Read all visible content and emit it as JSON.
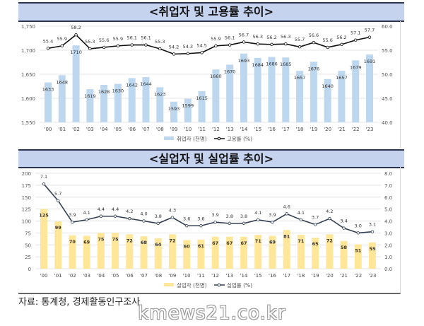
{
  "chart_data": [
    {
      "type": "bar",
      "title": "<취업자 및 고용률 추이>",
      "categories": [
        "'00",
        "'01",
        "'02",
        "'03",
        "'04",
        "'05",
        "'06",
        "'07",
        "'08",
        "'09",
        "'10",
        "'11",
        "'12",
        "'13",
        "'14",
        "'15",
        "'16",
        "'17",
        "'18",
        "'19",
        "'20",
        "'21",
        "'22",
        "'23"
      ],
      "series": [
        {
          "name": "취업자 (천명)",
          "type": "bar",
          "axis": "left",
          "color": "#bdd7ee",
          "values": [
            1633,
            1648,
            1710,
            1619,
            1628,
            1630,
            1642,
            1644,
            1623,
            1593,
            1599,
            1615,
            1660,
            1670,
            1693,
            1684,
            1686,
            1685,
            1657,
            1676,
            1640,
            1657,
            1679,
            1691
          ]
        },
        {
          "name": "고용률 (%)",
          "type": "line",
          "axis": "right",
          "color": "#111111",
          "values": [
            55.4,
            55.9,
            58.2,
            55.3,
            55.6,
            55.9,
            56.1,
            56.1,
            55.3,
            54.2,
            54.3,
            54.5,
            55.9,
            56.1,
            56.7,
            56.3,
            56.2,
            56.3,
            55.7,
            56.6,
            55.6,
            56.2,
            57.1,
            57.7
          ]
        }
      ],
      "ylim": [
        1550,
        1750
      ],
      "yticks": [
        "1,550",
        "1,600",
        "1,650",
        "1,700",
        "1,750"
      ],
      "y2lim": [
        40,
        60
      ],
      "y2ticks": [
        "40.0",
        "45.0",
        "50.0",
        "55.0",
        "60.0"
      ],
      "legend": "bottom"
    },
    {
      "type": "bar",
      "title": "<실업자 및 실업률 추이>",
      "categories": [
        "'00",
        "'01",
        "'02",
        "'03",
        "'04",
        "'05",
        "'06",
        "'07",
        "'08",
        "'09",
        "'10",
        "'11",
        "'12",
        "'13",
        "'14",
        "'15",
        "'16",
        "'17",
        "'18",
        "'19",
        "'20",
        "'21",
        "'22",
        "'23"
      ],
      "series": [
        {
          "name": "실업자 (천명)",
          "type": "bar",
          "axis": "left",
          "color": "#ffe699",
          "values": [
            125,
            99,
            70,
            69,
            75,
            75,
            72,
            68,
            64,
            72,
            60,
            61,
            67,
            67,
            67,
            71,
            69,
            81,
            71,
            65,
            72,
            58,
            51,
            55
          ]
        },
        {
          "name": "실업률 (%)",
          "type": "line",
          "axis": "right",
          "color": "#333f50",
          "values": [
            7.1,
            5.7,
            3.9,
            4.1,
            4.4,
            4.4,
            4.2,
            4.0,
            3.8,
            4.3,
            3.6,
            3.6,
            3.9,
            3.8,
            3.8,
            4.1,
            3.9,
            4.6,
            4.1,
            3.7,
            4.2,
            3.4,
            3.0,
            3.1
          ]
        }
      ],
      "ylim": [
        0,
        200
      ],
      "yticks": [
        "0",
        "25",
        "50",
        "75",
        "100",
        "125",
        "150",
        "175",
        "200"
      ],
      "y2lim": [
        0,
        8
      ],
      "y2ticks": [
        "0.0",
        "1.0",
        "2.0",
        "3.0",
        "4.0",
        "5.0",
        "6.0",
        "7.0",
        "8.0"
      ],
      "legend": "bottom"
    }
  ],
  "source": "자료: 통계청, 경제활동인구조사",
  "watermark": "kmews21.co.kr"
}
